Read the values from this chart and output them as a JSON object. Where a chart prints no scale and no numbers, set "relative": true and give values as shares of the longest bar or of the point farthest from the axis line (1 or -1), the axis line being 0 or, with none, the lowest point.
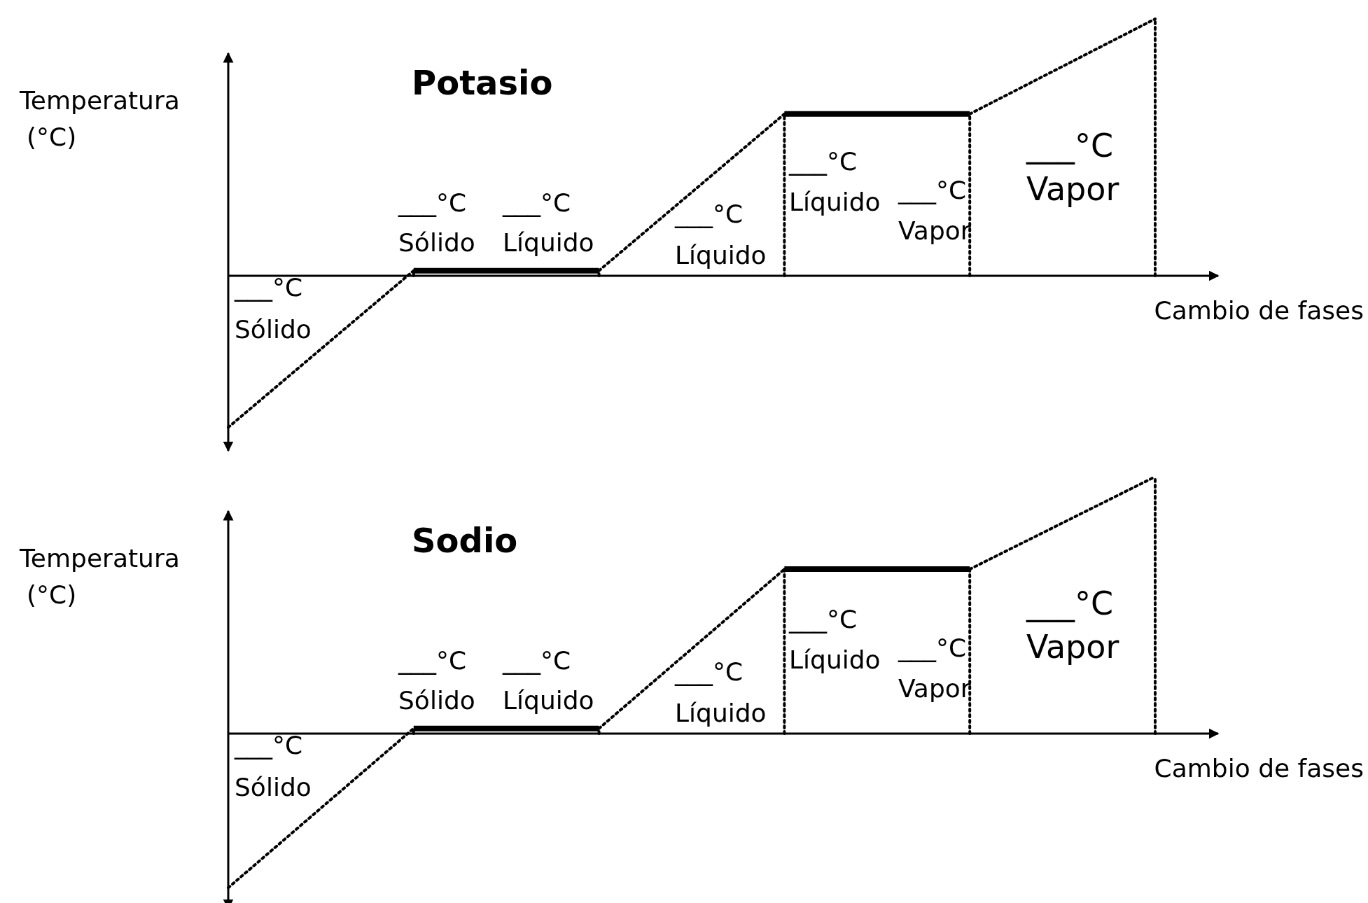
{
  "chart_data": [
    {
      "type": "line",
      "title": "Potasio",
      "ylabel": "Temperatura\n(°C)",
      "xlabel": "Cambio de fases",
      "relative": true,
      "marker": "none",
      "categories": [
        null,
        null,
        null,
        null,
        null,
        null
      ],
      "series": [
        {
          "color": "#000000",
          "line_style": "dotted",
          "values": [
            -0.59,
            0.02,
            null,
            null,
            null,
            null
          ]
        },
        {
          "color": "#000000",
          "line_style": "solid",
          "values": [
            null,
            0.02,
            0.02,
            null,
            null,
            null
          ]
        },
        {
          "color": "#000000",
          "line_style": "dotted",
          "values": [
            null,
            null,
            0.02,
            0.63,
            null,
            null
          ]
        },
        {
          "color": "#000000",
          "line_style": "solid",
          "values": [
            null,
            null,
            null,
            0.63,
            0.63,
            null
          ]
        },
        {
          "color": "#000000",
          "line_style": "dotted",
          "values": [
            null,
            null,
            null,
            null,
            0.63,
            1
          ]
        }
      ],
      "annotations": [
        "___°C\nSólido",
        "___°C\nSólido",
        "___°C\nLíquido",
        "___°C\nLíquido",
        "___°C\nLíquido",
        "___°C\nVapor",
        "___°C\nVapor"
      ]
    },
    {
      "type": "line",
      "title": "Sodio",
      "ylabel": "Temperatura\n(°C)",
      "xlabel": "Cambio de fases",
      "relative": true,
      "marker": "none",
      "categories": [
        null,
        null,
        null,
        null,
        null,
        null
      ],
      "series": [
        {
          "color": "#000000",
          "line_style": "dotted",
          "values": [
            -0.6,
            0.02,
            null,
            null,
            null,
            null
          ]
        },
        {
          "color": "#000000",
          "line_style": "solid",
          "values": [
            null,
            0.02,
            0.02,
            null,
            null,
            null
          ]
        },
        {
          "color": "#000000",
          "line_style": "dotted",
          "values": [
            null,
            null,
            0.02,
            0.64,
            null,
            null
          ]
        },
        {
          "color": "#000000",
          "line_style": "solid",
          "values": [
            null,
            null,
            null,
            0.64,
            0.64,
            null
          ]
        },
        {
          "color": "#000000",
          "line_style": "dotted",
          "values": [
            null,
            null,
            null,
            null,
            0.64,
            1
          ]
        }
      ],
      "annotations": [
        "___°C\nSólido",
        "___°C\nSólido",
        "___°C\nLíquido",
        "___°C\nLíquido",
        "___°C\nLíquido",
        "___°C\nVapor",
        "___°C\nVapor"
      ]
    }
  ]
}
